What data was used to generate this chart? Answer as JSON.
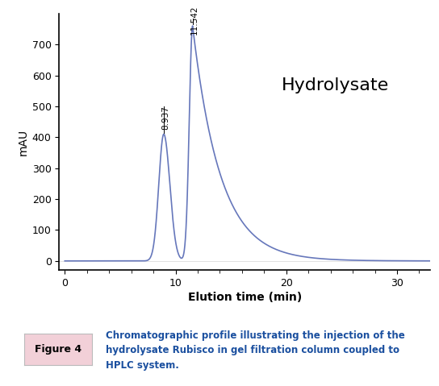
{
  "title": "Hydrolysate",
  "xlabel": "Elution time (min)",
  "ylabel": "mAU",
  "xlim": [
    -0.5,
    33
  ],
  "ylim": [
    -30,
    800
  ],
  "yticks": [
    0,
    100,
    200,
    300,
    400,
    500,
    600,
    700
  ],
  "xticks": [
    0,
    10,
    20,
    30
  ],
  "peak1_time": 8.937,
  "peak1_height": 410,
  "peak2_time": 11.542,
  "peak2_height": 760,
  "line_color": "#6677bb",
  "figure_label": "Figure 4",
  "figure_caption_line1": "Chromatographic profile illustrating the injection of the",
  "figure_caption_line2": "hydrolysate Rubisco in gel filtration column coupled to",
  "figure_caption_line3": "HPLC system.",
  "figure_label_bg": "#f2d0d8",
  "figure_caption_color": "#1a4f9f"
}
